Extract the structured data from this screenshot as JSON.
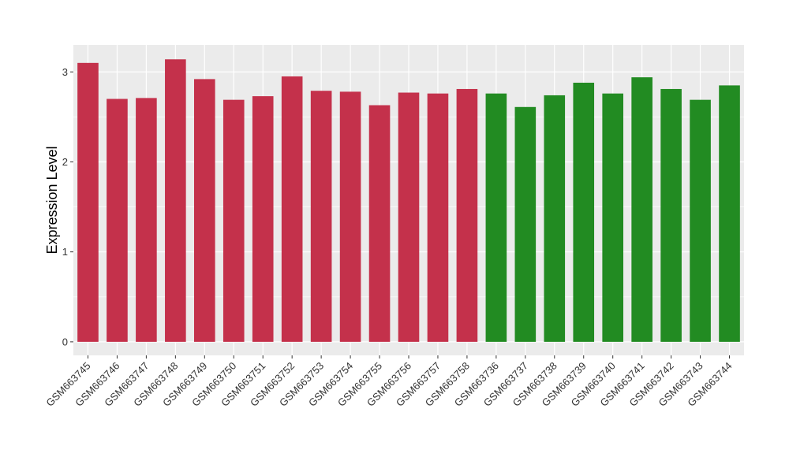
{
  "chart_data": {
    "type": "bar",
    "title": "",
    "xlabel": "",
    "ylabel": "Expression Level",
    "ylim": [
      -0.15,
      3.3
    ],
    "yticks": [
      0,
      1,
      2,
      3
    ],
    "grid": true,
    "legend": "none",
    "categories": [
      "GSM663745",
      "GSM663746",
      "GSM663747",
      "GSM663748",
      "GSM663749",
      "GSM663750",
      "GSM663751",
      "GSM663752",
      "GSM663753",
      "GSM663754",
      "GSM663755",
      "GSM663756",
      "GSM663757",
      "GSM663758",
      "GSM663736",
      "GSM663737",
      "GSM663738",
      "GSM663739",
      "GSM663740",
      "GSM663741",
      "GSM663742",
      "GSM663743",
      "GSM663744"
    ],
    "values": [
      3.1,
      2.7,
      2.71,
      3.14,
      2.92,
      2.69,
      2.73,
      2.95,
      2.79,
      2.78,
      2.63,
      2.77,
      2.76,
      2.81,
      2.76,
      2.61,
      2.74,
      2.88,
      2.76,
      2.94,
      2.81,
      2.69,
      2.85
    ],
    "bar_colors": [
      "#c4314b",
      "#c4314b",
      "#c4314b",
      "#c4314b",
      "#c4314b",
      "#c4314b",
      "#c4314b",
      "#c4314b",
      "#c4314b",
      "#c4314b",
      "#c4314b",
      "#c4314b",
      "#c4314b",
      "#c4314b",
      "#228b22",
      "#228b22",
      "#228b22",
      "#228b22",
      "#228b22",
      "#228b22",
      "#228b22",
      "#228b22",
      "#228b22"
    ],
    "panel_color": "#ebebeb",
    "grid_color": "#ffffff"
  }
}
